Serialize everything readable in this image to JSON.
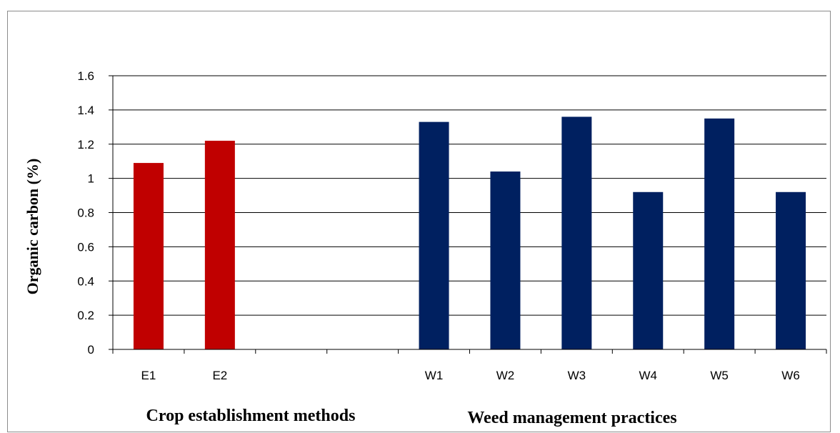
{
  "chart_data": {
    "type": "bar",
    "ylabel": "Organic carbon (%)",
    "ylim": [
      0,
      1.6
    ],
    "yticks": [
      "0",
      "0.2",
      "0.4",
      "0.6",
      "0.8",
      "1",
      "1.2",
      "1.4",
      "1.6"
    ],
    "grid": true,
    "categories": [
      "E1",
      "E2",
      "",
      "",
      "W1",
      "W2",
      "W3",
      "W4",
      "W5",
      "W6"
    ],
    "values": [
      1.09,
      1.22,
      null,
      null,
      1.33,
      1.04,
      1.36,
      0.92,
      1.35,
      0.92
    ],
    "bar_colors": [
      "#c00000",
      "#c00000",
      null,
      null,
      "#002060",
      "#002060",
      "#002060",
      "#002060",
      "#002060",
      "#002060"
    ],
    "group_labels": [
      "Crop establishment methods",
      "Weed management practices"
    ]
  }
}
